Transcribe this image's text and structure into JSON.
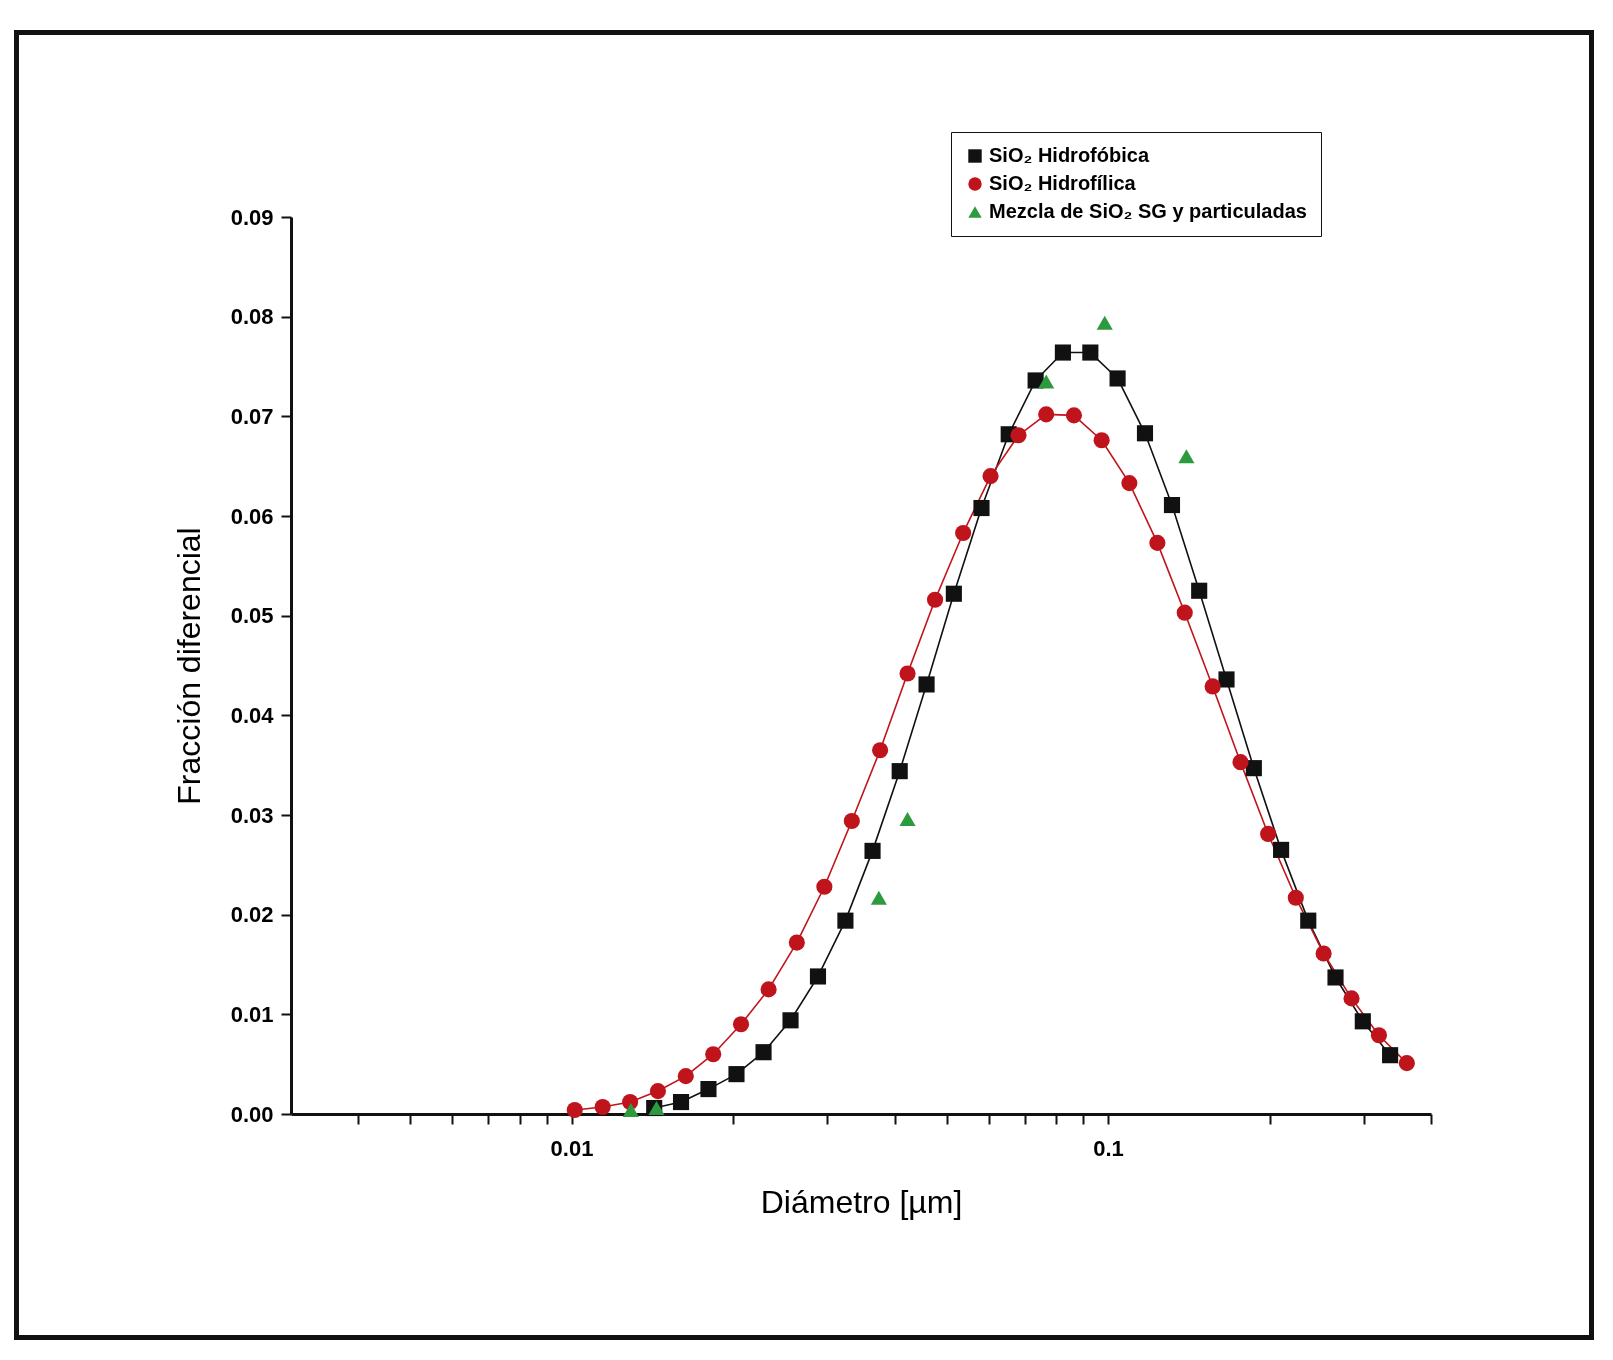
{
  "chart_data": {
    "type": "line",
    "xlabel": "Diámetro [µm]",
    "ylabel": "Fracción diferencial",
    "log": "x",
    "grid": false,
    "legend": "top right",
    "xlim": [
      0.003,
      0.4
    ],
    "xticks": [
      {
        "value": 0.004,
        "label": null
      },
      {
        "value": 0.005,
        "label": null
      },
      {
        "value": 0.006,
        "label": null
      },
      {
        "value": 0.007,
        "label": null
      },
      {
        "value": 0.008,
        "label": null
      },
      {
        "value": 0.009,
        "label": null
      },
      0.01,
      {
        "value": 0.02,
        "label": null
      },
      {
        "value": 0.03,
        "label": null
      },
      {
        "value": 0.04,
        "label": null
      },
      {
        "value": 0.05,
        "label": null
      },
      {
        "value": 0.06,
        "label": null
      },
      {
        "value": 0.07,
        "label": null
      },
      {
        "value": 0.08,
        "label": null
      },
      {
        "value": 0.09,
        "label": null
      },
      0.1,
      {
        "value": 0.2,
        "label": null
      },
      {
        "value": 0.3,
        "label": null
      },
      {
        "value": 0.4,
        "label": null
      }
    ],
    "ylim": [
      0,
      0.09
    ],
    "yticks": [
      {
        "value": 0,
        "label": "0.00"
      },
      {
        "value": 0.01,
        "label": "0.01"
      },
      {
        "value": 0.02,
        "label": "0.02"
      },
      {
        "value": 0.03,
        "label": "0.03"
      },
      {
        "value": 0.04,
        "label": "0.04"
      },
      {
        "value": 0.05,
        "label": "0.05"
      },
      {
        "value": 0.06,
        "label": "0.06"
      },
      {
        "value": 0.07,
        "label": "0.07"
      },
      {
        "value": 0.08,
        "label": "0.08"
      },
      {
        "value": 0.09,
        "label": "0.09"
      }
    ],
    "series": [
      {
        "name": "SiO₂ Hidrofóbica",
        "marker": "square",
        "line_style": "solid",
        "color": "#111111",
        "x": [
          0.01426,
          0.016,
          0.018,
          0.0203,
          0.0228,
          0.0256,
          0.0288,
          0.0324,
          0.0364,
          0.0409,
          0.0459,
          0.0516,
          0.0581,
          0.0653,
          0.0733,
          0.0824,
          0.0927,
          0.1042,
          0.1172,
          0.1316,
          0.1479,
          0.1663,
          0.187,
          0.2102,
          0.2362,
          0.2655,
          0.2985,
          0.3356
        ],
        "values": [
          0.0006,
          0.0012,
          0.0025,
          0.004,
          0.0062,
          0.0094,
          0.0138,
          0.0194,
          0.0264,
          0.0344,
          0.0431,
          0.0522,
          0.0608,
          0.0682,
          0.0736,
          0.0764,
          0.0764,
          0.0738,
          0.0683,
          0.0611,
          0.0525,
          0.0436,
          0.0347,
          0.0265,
          0.0194,
          0.0137,
          0.0093,
          0.0059
        ]
      },
      {
        "name": "SiO₂ Hidrofílica",
        "marker": "circle",
        "line_style": "solid",
        "color": "#c0141c",
        "x": [
          0.01014,
          0.01143,
          0.01286,
          0.01449,
          0.01633,
          0.01837,
          0.0207,
          0.0233,
          0.0263,
          0.0296,
          0.0333,
          0.0376,
          0.0423,
          0.0476,
          0.0537,
          0.0604,
          0.0681,
          0.0767,
          0.0864,
          0.0973,
          0.1096,
          0.1236,
          0.139,
          0.1567,
          0.1766,
          0.1988,
          0.2239,
          0.2523,
          0.2844,
          0.3199,
          0.3606
        ],
        "values": [
          0.0004,
          0.0007,
          0.0012,
          0.0023,
          0.0038,
          0.006,
          0.009,
          0.0125,
          0.0172,
          0.0228,
          0.0294,
          0.0365,
          0.0442,
          0.0516,
          0.0583,
          0.064,
          0.0681,
          0.0702,
          0.0701,
          0.0676,
          0.0633,
          0.0573,
          0.0503,
          0.0429,
          0.0353,
          0.0281,
          0.0217,
          0.0161,
          0.0116,
          0.0079,
          0.0051
        ]
      },
      {
        "name": "Mezcla de SiO₂ SG y particuladas",
        "type": "scatter",
        "marker": "triangle",
        "color": "#2e9a3e",
        "x": [
          0.0129,
          0.0144,
          0.0374,
          0.0423,
          0.0767,
          0.0986,
          0.14
        ],
        "values": [
          0.0004,
          0.0006,
          0.0217,
          0.0296,
          0.0735,
          0.0794,
          0.066
        ]
      }
    ]
  }
}
